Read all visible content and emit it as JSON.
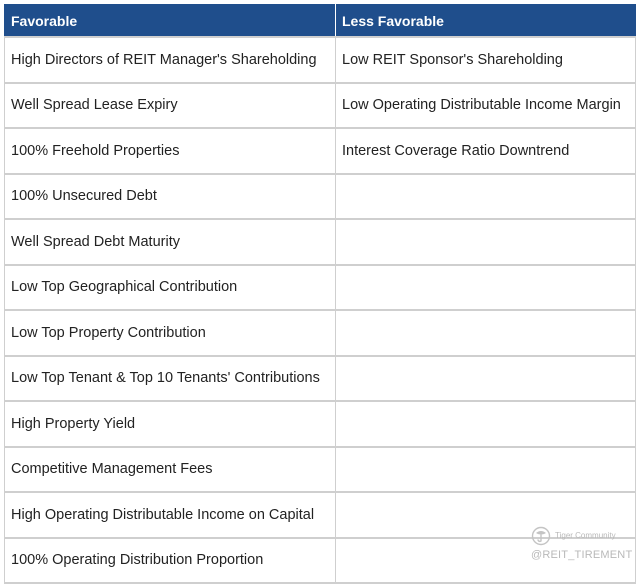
{
  "table": {
    "headers": {
      "favorable": "Favorable",
      "less_favorable": "Less Favorable"
    },
    "rows": [
      {
        "favorable": "High Directors of REIT Manager's Shareholding",
        "less_favorable": "Low REIT Sponsor's Shareholding"
      },
      {
        "favorable": "Well Spread Lease Expiry",
        "less_favorable": "Low Operating Distributable Income Margin"
      },
      {
        "favorable": "100% Freehold Properties",
        "less_favorable": "Interest Coverage Ratio Downtrend"
      },
      {
        "favorable": "100% Unsecured Debt",
        "less_favorable": ""
      },
      {
        "favorable": "Well Spread Debt Maturity",
        "less_favorable": ""
      },
      {
        "favorable": "Low Top Geographical Contribution",
        "less_favorable": ""
      },
      {
        "favorable": "Low Top Property Contribution",
        "less_favorable": ""
      },
      {
        "favorable": "Low Top Tenant & Top 10 Tenants' Contributions",
        "less_favorable": ""
      },
      {
        "favorable": "High Property Yield",
        "less_favorable": ""
      },
      {
        "favorable": "Competitive Management Fees",
        "less_favorable": ""
      },
      {
        "favorable": "High Operating Distributable Income on Capital",
        "less_favorable": ""
      },
      {
        "favorable": "100% Operating Distribution Proportion",
        "less_favorable": ""
      }
    ]
  },
  "watermark": {
    "community": "Tiger Community",
    "handle": "@REIT_TIREMENT",
    "icon": "tiger-logo-icon"
  },
  "colors": {
    "header_bg": "#1f4e8c",
    "header_text": "#ffffff",
    "grid": "#cfcfcf"
  }
}
